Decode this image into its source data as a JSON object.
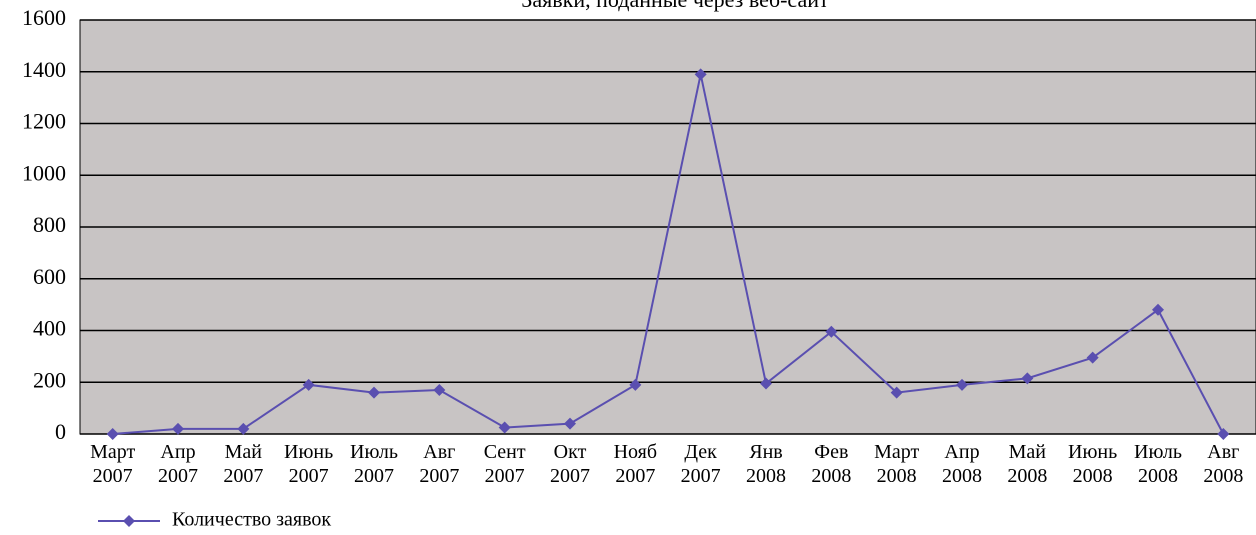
{
  "chart_data": {
    "type": "line",
    "title": "Заявки, поданные через веб-сайт",
    "categories": [
      "Март 2007",
      "Апр 2007",
      "Май 2007",
      "Июнь 2007",
      "Июль 2007",
      "Авг 2007",
      "Сент 2007",
      "Окт 2007",
      "Нояб 2007",
      "Дек 2007",
      "Янв 2008",
      "Фев 2008",
      "Март 2008",
      "Апр 2008",
      "Май 2008",
      "Июнь 2008",
      "Июль 2008",
      "Авг 2008"
    ],
    "series": [
      {
        "name": "Количество заявок",
        "color": "#5a4fb0",
        "values": [
          0,
          20,
          20,
          190,
          160,
          170,
          25,
          40,
          190,
          1390,
          195,
          395,
          160,
          190,
          215,
          295,
          480,
          0
        ]
      }
    ],
    "ylim": [
      0,
      1600
    ],
    "yticks": [
      0,
      200,
      400,
      600,
      800,
      1000,
      1200,
      1400,
      1600
    ],
    "grid": true
  }
}
